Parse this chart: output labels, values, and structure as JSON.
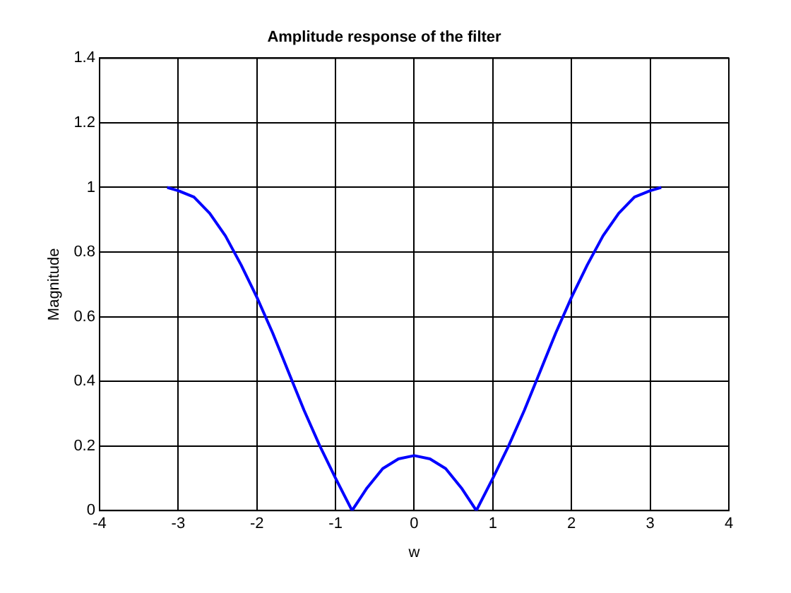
{
  "chart_data": {
    "type": "line",
    "title": "Amplitude response of the filter",
    "xlabel": "w",
    "ylabel": "Magnitude",
    "x": [
      -3.14,
      -3.0,
      -2.8,
      -2.6,
      -2.4,
      -2.2,
      -2.0,
      -1.8,
      -1.6,
      -1.4,
      -1.2,
      -1.0,
      -0.79,
      -0.6,
      -0.4,
      -0.2,
      0,
      0.2,
      0.4,
      0.6,
      0.79,
      1.0,
      1.2,
      1.4,
      1.6,
      1.8,
      2.0,
      2.2,
      2.4,
      2.6,
      2.8,
      3.0,
      3.14
    ],
    "series": [
      {
        "color": "#0000ff",
        "values": [
          1.0,
          0.99,
          0.97,
          0.92,
          0.85,
          0.76,
          0.66,
          0.55,
          0.43,
          0.31,
          0.2,
          0.1,
          0,
          0.07,
          0.13,
          0.16,
          0.17,
          0.16,
          0.13,
          0.07,
          0,
          0.1,
          0.2,
          0.31,
          0.43,
          0.55,
          0.66,
          0.76,
          0.85,
          0.92,
          0.97,
          0.99,
          1.0
        ]
      }
    ],
    "xlim": [
      -4,
      4
    ],
    "xticks": [
      -4,
      -3,
      -2,
      -1,
      0,
      1,
      2,
      3,
      4
    ],
    "ylim": [
      0,
      1.4
    ],
    "yticks": [
      0,
      0.2,
      0.4,
      0.6,
      0.8,
      1,
      1.2,
      1.4
    ],
    "grid": true,
    "legend": false,
    "marker": "none",
    "line_style": "solid"
  }
}
